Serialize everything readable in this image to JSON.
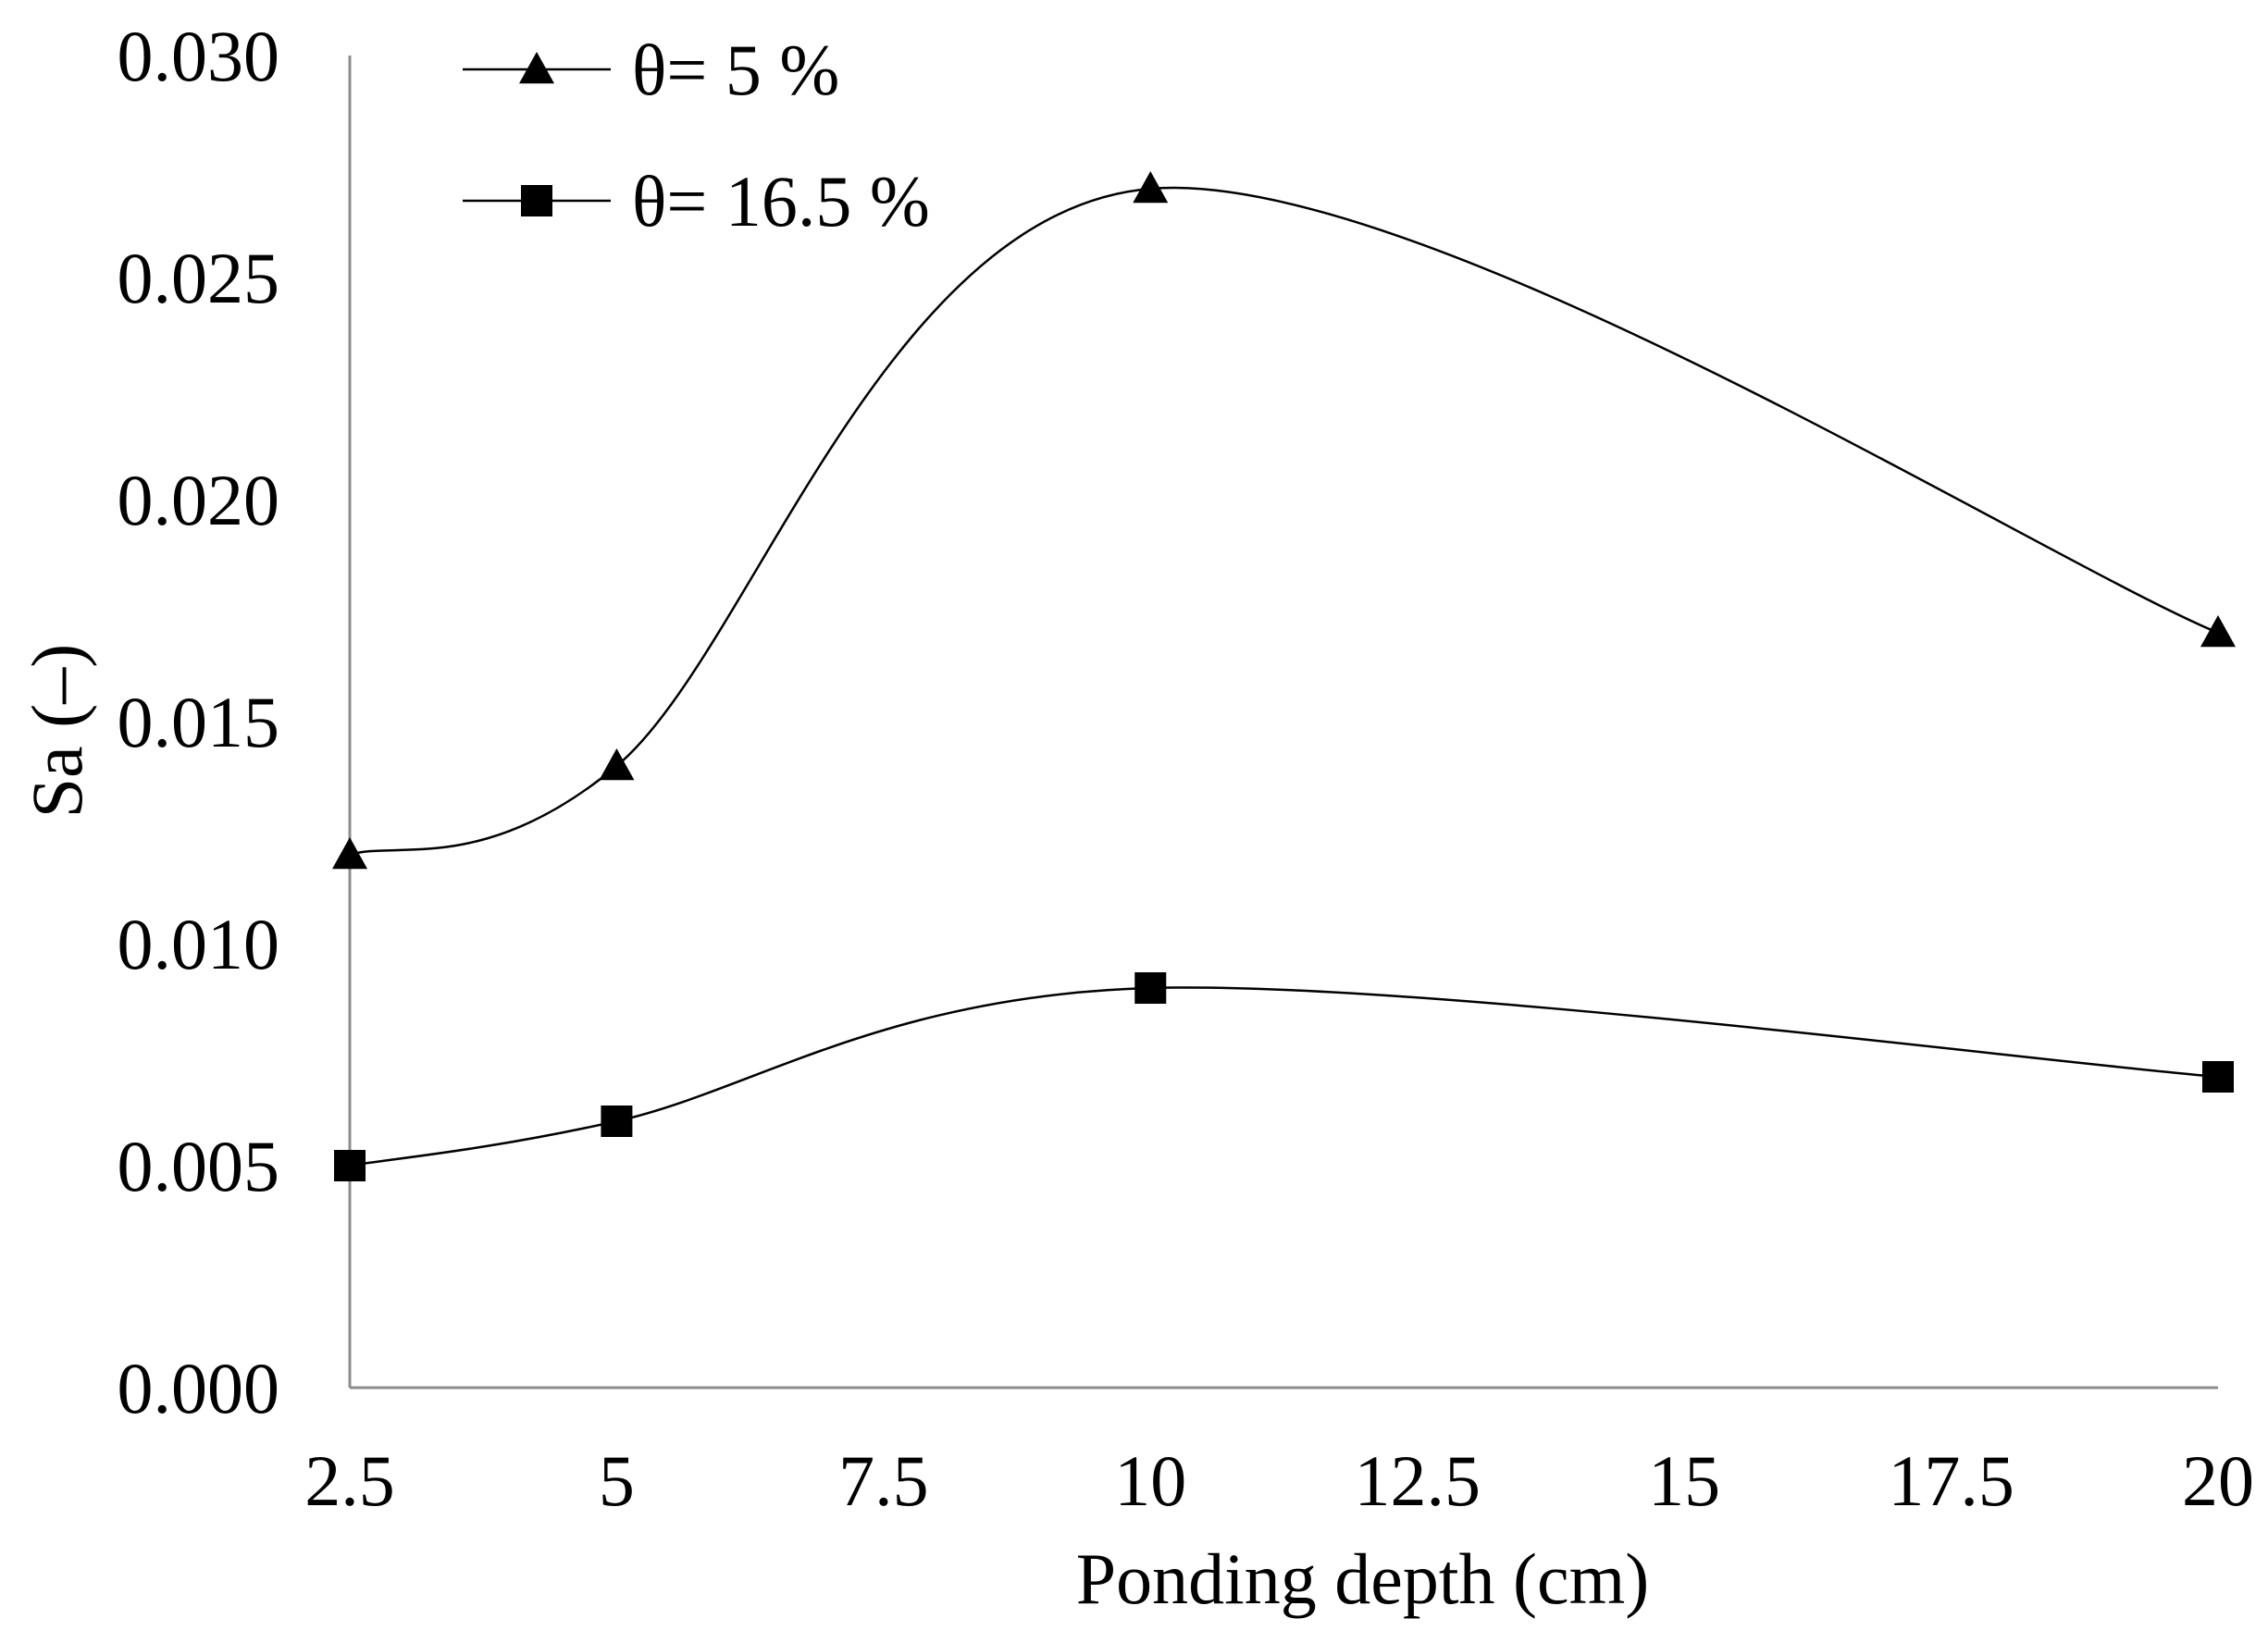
{
  "chart_data": {
    "type": "line",
    "smooth": true,
    "title": "",
    "xlabel": "Ponding depth (cm)",
    "ylabel": "Sa (–)",
    "xlim": [
      2.5,
      20
    ],
    "ylim": [
      0,
      0.03
    ],
    "x_ticks": [
      2.5,
      5,
      7.5,
      10,
      12.5,
      15,
      17.5,
      20
    ],
    "x_tick_labels": [
      "2.5",
      "5",
      "7.5",
      "10",
      "12.5",
      "15",
      "17.5",
      "20"
    ],
    "y_ticks": [
      0,
      0.005,
      0.01,
      0.015,
      0.02,
      0.025,
      0.03
    ],
    "y_tick_labels": [
      "0.000",
      "0.005",
      "0.010",
      "0.015",
      "0.020",
      "0.025",
      "0.030"
    ],
    "grid": false,
    "legend_position": "top-left",
    "series": [
      {
        "name": "θ= 5 %",
        "marker": "triangle",
        "color": "#000000",
        "x": [
          2.5,
          5,
          10,
          20
        ],
        "values": [
          0.012,
          0.014,
          0.027,
          0.017
        ]
      },
      {
        "name": "θ= 16.5 %",
        "marker": "square",
        "color": "#000000",
        "x": [
          2.5,
          5,
          10,
          20
        ],
        "values": [
          0.005,
          0.006,
          0.009,
          0.007
        ]
      }
    ]
  }
}
